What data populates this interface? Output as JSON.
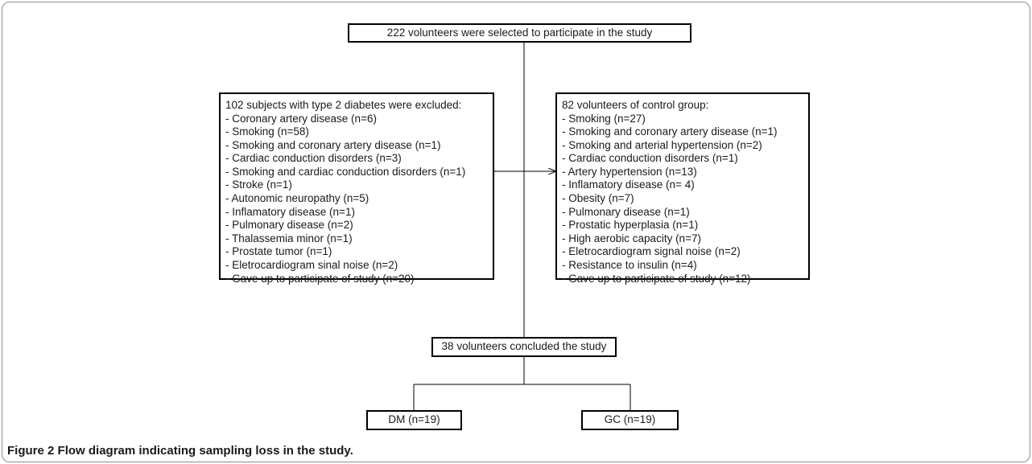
{
  "top_box": {
    "text": "222 volunteers were selected to participate in the study"
  },
  "excluded_box": {
    "title": "102 subjects with type 2 diabetes were excluded:",
    "items": [
      "- Coronary artery disease (n=6)",
      "- Smoking (n=58)",
      "- Smoking and coronary artery disease (n=1)",
      "- Cardiac conduction disorders (n=3)",
      "- Smoking and cardiac conduction disorders  (n=1)",
      "- Stroke (n=1)",
      "- Autonomic neuropathy (n=5)",
      "- Inflamatory disease (n=1)",
      "- Pulmonary disease (n=2)",
      "- Thalassemia minor (n=1)",
      "- Prostate tumor (n=1)",
      "- Eletrocardiogram sinal noise (n=2)",
      "- Gave up to participate of study (n=20)"
    ]
  },
  "control_box": {
    "title": "82 volunteers of control group:",
    "items": [
      "- Smoking (n=27)",
      "- Smoking and coronary artery disease (n=1)",
      "- Smoking and arterial hypertension (n=2)",
      "- Cardiac conduction disorders  (n=1)",
      "- Artery hypertension (n=13)",
      "- Inflamatory disease (n= 4)",
      "- Obesity (n=7)",
      "- Pulmonary disease (n=1)",
      "- Prostatic hyperplasia (n=1)",
      "- High aerobic capacity (n=7)",
      "- Eletrocardiogram signal noise (n=2)",
      "- Resistance to insulin (n=4)",
      "- Gave up to participate of study (n=12)"
    ]
  },
  "concluded_box": {
    "text": "38 volunteers concluded the study"
  },
  "dm_box": {
    "text": "DM (n=19)"
  },
  "gc_box": {
    "text": "GC (n=19)"
  },
  "caption": {
    "label": "Figure 2",
    "text": "Flow diagram indicating sampling loss in the study."
  }
}
